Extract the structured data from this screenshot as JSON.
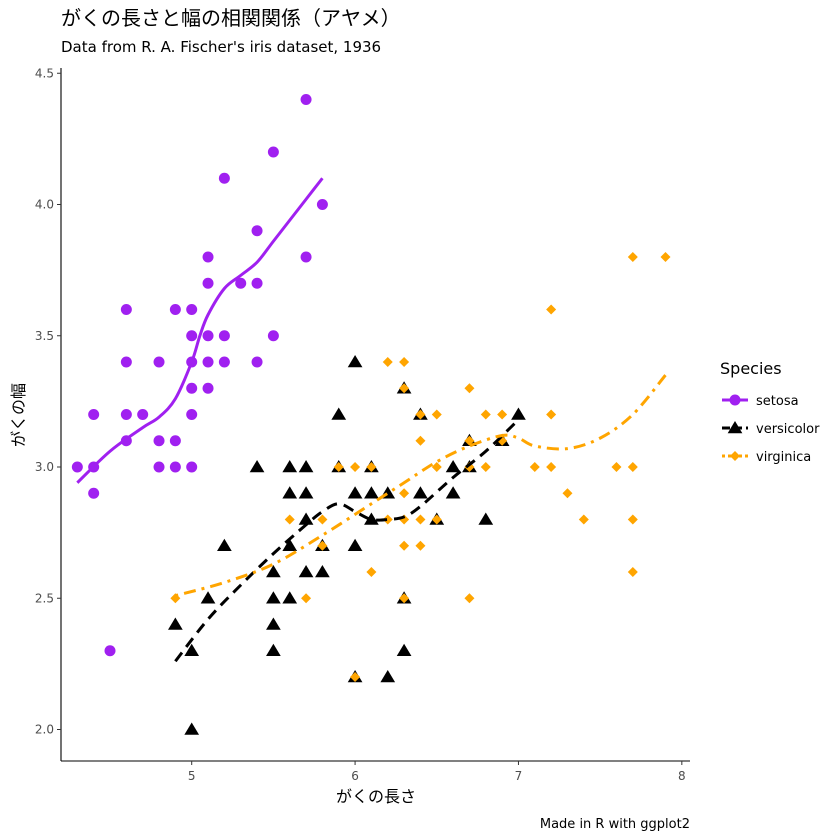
{
  "chart_data": {
    "type": "scatter",
    "title": "がくの長さと幅の相関関係（アヤメ）",
    "subtitle": "Data from R. A. Fischer's iris dataset, 1936",
    "xlabel": "がくの長さ",
    "ylabel": "がくの幅",
    "caption": "Made in R with ggplot2",
    "xlim": [
      4.2,
      8.05
    ],
    "ylim": [
      1.88,
      4.52
    ],
    "x_ticks": [
      5,
      6,
      7,
      8
    ],
    "y_ticks": [
      2.0,
      2.5,
      3.0,
      3.5,
      4.0,
      4.5
    ],
    "x_tick_labels": [
      "5",
      "6",
      "7",
      "8"
    ],
    "y_tick_labels": [
      "2.0",
      "2.5",
      "3.0",
      "3.5",
      "4.0",
      "4.5"
    ],
    "grid": false,
    "legend": {
      "title": "Species",
      "position": "right"
    },
    "series": [
      {
        "name": "setosa",
        "color": "#a020f0",
        "marker": "circle",
        "line_style": "solid",
        "points": [
          [
            4.3,
            3.0
          ],
          [
            4.4,
            2.9
          ],
          [
            4.4,
            3.0
          ],
          [
            4.4,
            3.2
          ],
          [
            4.5,
            2.3
          ],
          [
            4.6,
            3.1
          ],
          [
            4.6,
            3.2
          ],
          [
            4.6,
            3.4
          ],
          [
            4.6,
            3.6
          ],
          [
            4.7,
            3.2
          ],
          [
            4.8,
            3.0
          ],
          [
            4.8,
            3.1
          ],
          [
            4.8,
            3.4
          ],
          [
            4.9,
            3.0
          ],
          [
            4.9,
            3.1
          ],
          [
            4.9,
            3.6
          ],
          [
            5.0,
            3.0
          ],
          [
            5.0,
            3.2
          ],
          [
            5.0,
            3.3
          ],
          [
            5.0,
            3.4
          ],
          [
            5.0,
            3.5
          ],
          [
            5.0,
            3.6
          ],
          [
            5.1,
            3.3
          ],
          [
            5.1,
            3.4
          ],
          [
            5.1,
            3.5
          ],
          [
            5.1,
            3.7
          ],
          [
            5.1,
            3.8
          ],
          [
            5.2,
            3.4
          ],
          [
            5.2,
            3.5
          ],
          [
            5.2,
            4.1
          ],
          [
            5.3,
            3.7
          ],
          [
            5.4,
            3.4
          ],
          [
            5.4,
            3.7
          ],
          [
            5.4,
            3.9
          ],
          [
            5.5,
            3.5
          ],
          [
            5.5,
            4.2
          ],
          [
            5.7,
            3.8
          ],
          [
            5.7,
            4.4
          ],
          [
            5.8,
            4.0
          ]
        ],
        "trend": [
          [
            4.3,
            2.94
          ],
          [
            4.5,
            3.06
          ],
          [
            4.7,
            3.15
          ],
          [
            4.8,
            3.19
          ],
          [
            4.9,
            3.26
          ],
          [
            5.0,
            3.4
          ],
          [
            5.05,
            3.5
          ],
          [
            5.1,
            3.58
          ],
          [
            5.2,
            3.68
          ],
          [
            5.3,
            3.73
          ],
          [
            5.4,
            3.78
          ],
          [
            5.5,
            3.86
          ],
          [
            5.6,
            3.94
          ],
          [
            5.7,
            4.02
          ],
          [
            5.8,
            4.1
          ]
        ]
      },
      {
        "name": "versicolor",
        "color": "#000000",
        "marker": "triangle",
        "line_style": "dashed",
        "points": [
          [
            4.9,
            2.4
          ],
          [
            5.0,
            2.0
          ],
          [
            5.0,
            2.3
          ],
          [
            5.1,
            2.5
          ],
          [
            5.2,
            2.7
          ],
          [
            5.4,
            3.0
          ],
          [
            5.5,
            2.3
          ],
          [
            5.5,
            2.4
          ],
          [
            5.5,
            2.5
          ],
          [
            5.5,
            2.6
          ],
          [
            5.6,
            2.5
          ],
          [
            5.6,
            2.7
          ],
          [
            5.6,
            2.9
          ],
          [
            5.6,
            3.0
          ],
          [
            5.7,
            2.6
          ],
          [
            5.7,
            2.8
          ],
          [
            5.7,
            2.9
          ],
          [
            5.7,
            3.0
          ],
          [
            5.8,
            2.6
          ],
          [
            5.8,
            2.7
          ],
          [
            5.9,
            3.0
          ],
          [
            5.9,
            3.2
          ],
          [
            6.0,
            2.2
          ],
          [
            6.0,
            2.7
          ],
          [
            6.0,
            2.9
          ],
          [
            6.0,
            3.4
          ],
          [
            6.1,
            2.8
          ],
          [
            6.1,
            2.9
          ],
          [
            6.1,
            3.0
          ],
          [
            6.2,
            2.2
          ],
          [
            6.2,
            2.9
          ],
          [
            6.3,
            2.3
          ],
          [
            6.3,
            2.5
          ],
          [
            6.3,
            3.3
          ],
          [
            6.4,
            2.9
          ],
          [
            6.4,
            3.2
          ],
          [
            6.5,
            2.8
          ],
          [
            6.6,
            2.9
          ],
          [
            6.6,
            3.0
          ],
          [
            6.7,
            3.0
          ],
          [
            6.7,
            3.1
          ],
          [
            6.8,
            2.8
          ],
          [
            6.9,
            3.1
          ],
          [
            7.0,
            3.2
          ]
        ],
        "trend": [
          [
            4.9,
            2.26
          ],
          [
            5.1,
            2.42
          ],
          [
            5.3,
            2.55
          ],
          [
            5.5,
            2.67
          ],
          [
            5.7,
            2.78
          ],
          [
            5.8,
            2.83
          ],
          [
            5.9,
            2.86
          ],
          [
            6.0,
            2.83
          ],
          [
            6.1,
            2.8
          ],
          [
            6.2,
            2.8
          ],
          [
            6.3,
            2.81
          ],
          [
            6.4,
            2.85
          ],
          [
            6.6,
            2.96
          ],
          [
            6.8,
            3.06
          ],
          [
            7.0,
            3.18
          ]
        ]
      },
      {
        "name": "virginica",
        "color": "#ffa500",
        "marker": "diamond",
        "line_style": "dotdash",
        "points": [
          [
            4.9,
            2.5
          ],
          [
            5.6,
            2.8
          ],
          [
            5.7,
            2.5
          ],
          [
            5.8,
            2.7
          ],
          [
            5.8,
            2.8
          ],
          [
            5.9,
            3.0
          ],
          [
            6.0,
            2.2
          ],
          [
            6.0,
            3.0
          ],
          [
            6.1,
            2.6
          ],
          [
            6.1,
            3.0
          ],
          [
            6.2,
            2.8
          ],
          [
            6.2,
            3.4
          ],
          [
            6.3,
            2.5
          ],
          [
            6.3,
            2.7
          ],
          [
            6.3,
            2.8
          ],
          [
            6.3,
            2.9
          ],
          [
            6.3,
            3.3
          ],
          [
            6.3,
            3.4
          ],
          [
            6.4,
            2.7
          ],
          [
            6.4,
            2.8
          ],
          [
            6.4,
            3.1
          ],
          [
            6.4,
            3.2
          ],
          [
            6.5,
            2.8
          ],
          [
            6.5,
            3.0
          ],
          [
            6.5,
            3.2
          ],
          [
            6.7,
            2.5
          ],
          [
            6.7,
            3.0
          ],
          [
            6.7,
            3.1
          ],
          [
            6.7,
            3.3
          ],
          [
            6.8,
            3.0
          ],
          [
            6.8,
            3.2
          ],
          [
            6.9,
            3.1
          ],
          [
            6.9,
            3.2
          ],
          [
            7.1,
            3.0
          ],
          [
            7.2,
            3.0
          ],
          [
            7.2,
            3.2
          ],
          [
            7.2,
            3.6
          ],
          [
            7.3,
            2.9
          ],
          [
            7.4,
            2.8
          ],
          [
            7.6,
            3.0
          ],
          [
            7.7,
            2.6
          ],
          [
            7.7,
            2.8
          ],
          [
            7.7,
            3.0
          ],
          [
            7.7,
            3.8
          ],
          [
            7.9,
            3.8
          ]
        ],
        "trend": [
          [
            4.9,
            2.51
          ],
          [
            5.2,
            2.56
          ],
          [
            5.5,
            2.63
          ],
          [
            5.8,
            2.74
          ],
          [
            6.1,
            2.86
          ],
          [
            6.3,
            2.94
          ],
          [
            6.5,
            3.02
          ],
          [
            6.7,
            3.08
          ],
          [
            6.9,
            3.12
          ],
          [
            7.0,
            3.11
          ],
          [
            7.1,
            3.08
          ],
          [
            7.3,
            3.07
          ],
          [
            7.5,
            3.11
          ],
          [
            7.7,
            3.2
          ],
          [
            7.9,
            3.35
          ]
        ]
      }
    ]
  }
}
